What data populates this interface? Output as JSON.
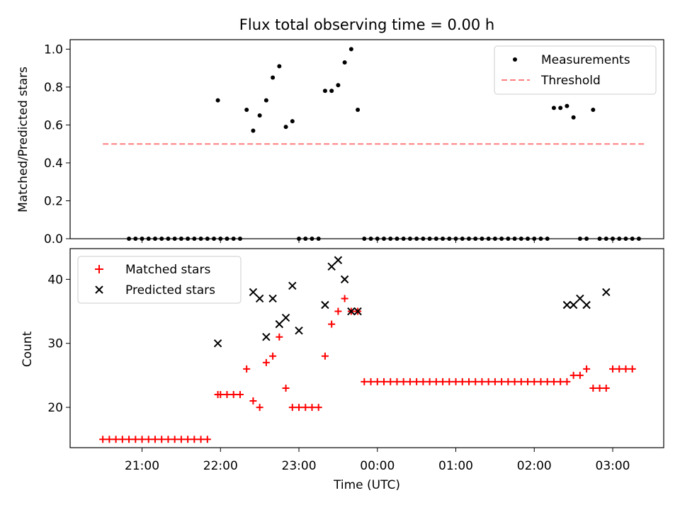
{
  "chart_data": [
    {
      "type": "scatter",
      "title": "Flux total observing time = 0.00 h",
      "ylabel": "Matched/Predicted stars",
      "ylim": [
        0,
        1.05
      ],
      "yticks": [
        "0.0",
        "0.2",
        "0.4",
        "0.6",
        "0.8",
        "1.0"
      ],
      "legend_position": "top-right",
      "series": [
        {
          "name": "Measurements",
          "style": "dot",
          "color": "#000000",
          "x": [
            "20:50",
            "20:55",
            "21:00",
            "21:05",
            "21:10",
            "21:15",
            "21:20",
            "21:25",
            "21:30",
            "21:35",
            "21:40",
            "21:45",
            "21:50",
            "21:55",
            "21:58",
            "22:00",
            "22:05",
            "22:10",
            "22:15",
            "22:20",
            "22:25",
            "22:30",
            "22:35",
            "22:40",
            "22:45",
            "22:50",
            "22:55",
            "23:00",
            "23:05",
            "23:10",
            "23:15",
            "23:20",
            "23:25",
            "23:30",
            "23:35",
            "23:40",
            "23:45",
            "23:50",
            "23:55",
            "00:00",
            "00:05",
            "00:10",
            "00:15",
            "00:20",
            "00:25",
            "00:30",
            "00:35",
            "00:40",
            "00:45",
            "00:50",
            "00:55",
            "01:00",
            "01:05",
            "01:10",
            "01:15",
            "01:20",
            "01:25",
            "01:30",
            "01:35",
            "01:40",
            "01:45",
            "01:50",
            "01:55",
            "02:00",
            "02:05",
            "02:10",
            "02:15",
            "02:20",
            "02:25",
            "02:30",
            "02:35",
            "02:40",
            "02:45",
            "02:50",
            "02:55",
            "03:00",
            "03:05",
            "03:10",
            "03:15",
            "03:20"
          ],
          "y": [
            0,
            0,
            0,
            0,
            0,
            0,
            0,
            0,
            0,
            0,
            0,
            0,
            0,
            0,
            0.73,
            0,
            0,
            0,
            0,
            0.68,
            0.57,
            0.65,
            0.73,
            0.85,
            0.91,
            0.59,
            0.62,
            0,
            0,
            0,
            0,
            0.78,
            0.78,
            0.81,
            0.93,
            1.0,
            0.68,
            0,
            0,
            0,
            0,
            0,
            0,
            0,
            0,
            0,
            0,
            0,
            0,
            0,
            0,
            0,
            0,
            0,
            0,
            0,
            0,
            0,
            0,
            0,
            0,
            0,
            0,
            0,
            0,
            0,
            0.69,
            0.69,
            0.7,
            0.64,
            0,
            0,
            0.68,
            0,
            0,
            0,
            0,
            0,
            0,
            0
          ]
        },
        {
          "name": "Threshold",
          "style": "dashed-line",
          "color": "#ff7f7f",
          "x": [
            "20:30",
            "03:25"
          ],
          "y": [
            0.5,
            0.5
          ]
        }
      ]
    },
    {
      "type": "scatter",
      "xlabel": "Time (UTC)",
      "ylabel": "Count",
      "ylim": [
        13.7,
        44.8
      ],
      "yticks": [
        "20",
        "30",
        "40"
      ],
      "xticks": [
        "21:00",
        "22:00",
        "23:00",
        "00:00",
        "01:00",
        "02:00",
        "03:00"
      ],
      "legend_position": "top-left",
      "series": [
        {
          "name": "Matched stars",
          "style": "plus",
          "color": "#ff0000",
          "x": [
            "20:30",
            "20:35",
            "20:40",
            "20:45",
            "20:50",
            "20:55",
            "21:00",
            "21:05",
            "21:10",
            "21:15",
            "21:20",
            "21:25",
            "21:30",
            "21:35",
            "21:40",
            "21:45",
            "21:50",
            "21:58",
            "22:00",
            "22:05",
            "22:10",
            "22:15",
            "22:20",
            "22:25",
            "22:30",
            "22:35",
            "22:40",
            "22:45",
            "22:50",
            "22:55",
            "23:00",
            "23:05",
            "23:10",
            "23:15",
            "23:20",
            "23:25",
            "23:30",
            "23:35",
            "23:40",
            "23:45",
            "23:50",
            "23:55",
            "00:00",
            "00:05",
            "00:10",
            "00:15",
            "00:20",
            "00:25",
            "00:30",
            "00:35",
            "00:40",
            "00:45",
            "00:50",
            "00:55",
            "01:00",
            "01:05",
            "01:10",
            "01:15",
            "01:20",
            "01:25",
            "01:30",
            "01:35",
            "01:40",
            "01:45",
            "01:50",
            "01:55",
            "02:00",
            "02:05",
            "02:10",
            "02:15",
            "02:20",
            "02:25",
            "02:30",
            "02:35",
            "02:40",
            "02:45",
            "02:50",
            "02:55",
            "03:00",
            "03:05",
            "03:10",
            "03:15"
          ],
          "y": [
            15,
            15,
            15,
            15,
            15,
            15,
            15,
            15,
            15,
            15,
            15,
            15,
            15,
            15,
            15,
            15,
            15,
            22,
            22,
            22,
            22,
            22,
            26,
            21,
            20,
            27,
            28,
            31,
            23,
            20,
            20,
            20,
            20,
            20,
            28,
            33,
            35,
            37,
            35,
            35,
            24,
            24,
            24,
            24,
            24,
            24,
            24,
            24,
            24,
            24,
            24,
            24,
            24,
            24,
            24,
            24,
            24,
            24,
            24,
            24,
            24,
            24,
            24,
            24,
            24,
            24,
            24,
            24,
            24,
            24,
            24,
            24,
            25,
            25,
            26,
            23,
            23,
            23,
            26,
            26,
            26,
            26
          ]
        },
        {
          "name": "Predicted stars",
          "style": "x",
          "color": "#000000",
          "x": [
            "21:58",
            "22:25",
            "22:30",
            "22:35",
            "22:40",
            "22:45",
            "22:50",
            "22:55",
            "23:00",
            "23:20",
            "23:25",
            "23:30",
            "23:35",
            "23:40",
            "23:45",
            "02:25",
            "02:30",
            "02:35",
            "02:40",
            "02:55"
          ],
          "y": [
            30,
            38,
            37,
            31,
            37,
            33,
            34,
            39,
            32,
            36,
            42,
            43,
            40,
            35,
            35,
            36,
            36,
            37,
            36,
            38
          ]
        }
      ]
    }
  ]
}
